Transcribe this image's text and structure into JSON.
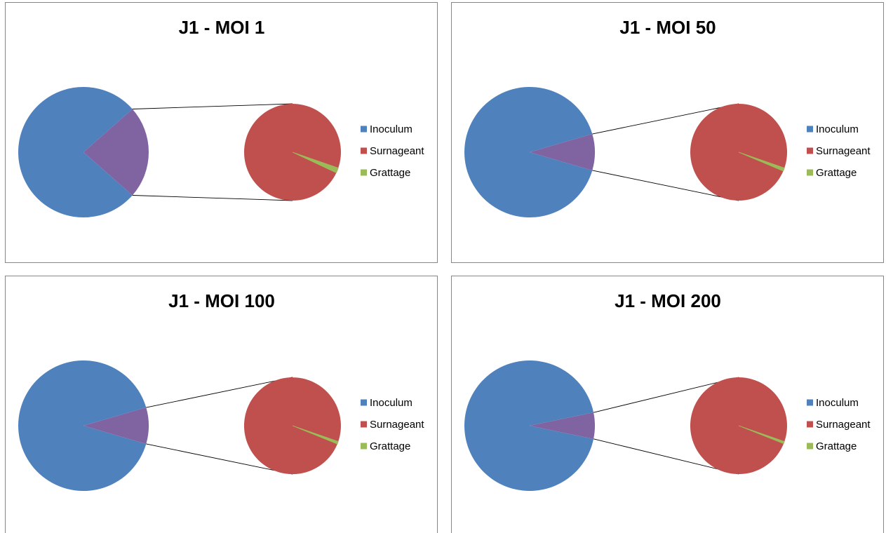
{
  "colors": {
    "inoculum": "#4F81BD",
    "surnageant": "#C0504D",
    "grattage": "#9BBB59",
    "remainder": "#8064A2"
  },
  "legend_placement": "right",
  "chart_data": [
    {
      "type": "pie",
      "subtype": "pie-of-pie",
      "title": "J1 - MOI 1",
      "categories": [
        "Inoculum",
        "Surnageant",
        "Grattage"
      ],
      "values": [
        77,
        22.6,
        0.4
      ],
      "secondary_categories": [
        "Surnageant",
        "Grattage"
      ]
    },
    {
      "type": "pie",
      "subtype": "pie-of-pie",
      "title": "J1 - MOI 50",
      "categories": [
        "Inoculum",
        "Surnageant",
        "Grattage"
      ],
      "values": [
        91,
        8.9,
        0.1
      ],
      "secondary_categories": [
        "Surnageant",
        "Grattage"
      ]
    },
    {
      "type": "pie",
      "subtype": "pie-of-pie",
      "title": "J1 - MOI 100",
      "categories": [
        "Inoculum",
        "Surnageant",
        "Grattage"
      ],
      "values": [
        91,
        8.92,
        0.08
      ],
      "secondary_categories": [
        "Surnageant",
        "Grattage"
      ]
    },
    {
      "type": "pie",
      "subtype": "pie-of-pie",
      "title": "J1 - MOI 200",
      "categories": [
        "Inoculum",
        "Surnageant",
        "Grattage"
      ],
      "values": [
        93.5,
        6.45,
        0.05
      ],
      "secondary_categories": [
        "Surnageant",
        "Grattage"
      ]
    }
  ]
}
